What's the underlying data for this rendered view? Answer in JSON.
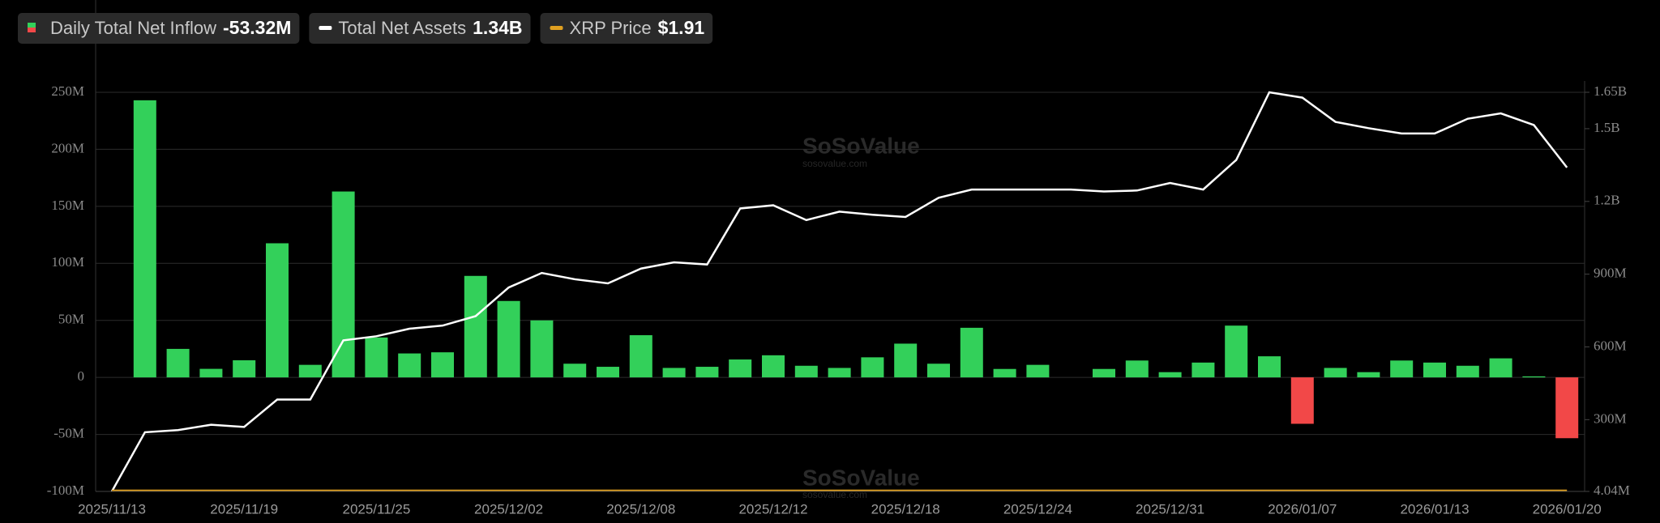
{
  "chart_data": {
    "type": "bar",
    "categories": [
      "2025/11/13",
      null,
      null,
      null,
      "2025/11/19",
      null,
      null,
      null,
      "2025/11/25",
      null,
      null,
      null,
      "2025/12/02",
      null,
      null,
      null,
      "2025/12/08",
      null,
      null,
      null,
      "2025/12/12",
      null,
      null,
      null,
      "2025/12/18",
      null,
      null,
      null,
      "2025/12/24",
      null,
      null,
      null,
      "2025/12/31",
      null,
      null,
      null,
      "2026/01/07",
      null,
      null,
      null,
      "2026/01/13",
      null,
      null,
      null,
      "2026/01/20"
    ],
    "series": [
      {
        "name": "Daily Total Net Inflow",
        "legend_value": "-53.32M",
        "color": "#33d05a",
        "negative_color": "#f24848",
        "type": "bar",
        "values": [
          null,
          243,
          25,
          7.5,
          15,
          117.6,
          11,
          163,
          35,
          21,
          22,
          89,
          67,
          50,
          12,
          9.3,
          37,
          8.3,
          9.3,
          15.7,
          19.4,
          10.2,
          8.3,
          17.6,
          29.6,
          12,
          43.5,
          7.4,
          11,
          0,
          7.4,
          14.8,
          4.6,
          13,
          45.4,
          18.5,
          -40.7,
          8.3,
          4.6,
          14.8,
          13,
          10.2,
          16.7,
          0.9,
          -53.32
        ]
      },
      {
        "name": "Total Net Assets",
        "legend_value": "1.34B",
        "color": "#ffffff",
        "type": "line",
        "axis": "y2",
        "values": [
          4.04,
          248,
          257,
          279,
          270,
          383,
          383,
          627,
          644,
          675,
          688,
          727,
          845,
          905,
          879,
          862,
          923,
          949,
          940,
          1171,
          1184,
          1123,
          1158,
          1145,
          1136,
          1215,
          1249,
          1249,
          1249,
          1249,
          1241,
          1245,
          1276,
          1249,
          1371,
          1650,
          1628,
          1528,
          1502,
          1480,
          1480,
          1541,
          1563,
          1515,
          1340
        ]
      },
      {
        "name": "XRP Price",
        "legend_value": "$1.91",
        "color": "#e0a020",
        "type": "flat"
      }
    ],
    "ylim": [
      -100,
      250
    ],
    "yticks": [
      {
        "value": -100,
        "label": "-100M"
      },
      {
        "value": -50,
        "label": "-50M"
      },
      0,
      {
        "value": 50,
        "label": "50M"
      },
      {
        "value": 100,
        "label": "100M"
      },
      {
        "value": 150,
        "label": "150M"
      },
      {
        "value": 200,
        "label": "200M"
      },
      {
        "value": 250,
        "label": "250M"
      }
    ],
    "y2lim": [
      4.04,
      1650
    ],
    "y2ticks": [
      {
        "value": 4.04,
        "label": "4.04M"
      },
      {
        "value": 300,
        "label": "300M"
      },
      {
        "value": 600,
        "label": "600M"
      },
      {
        "value": 900,
        "label": "900M"
      },
      {
        "value": 1200,
        "label": "1.2B"
      },
      {
        "value": 1500,
        "label": "1.5B"
      },
      {
        "value": 1650,
        "label": "1.65B"
      }
    ],
    "grid": true,
    "watermark": {
      "brand": "SoSoValue",
      "site": "sosovalue.com"
    }
  }
}
